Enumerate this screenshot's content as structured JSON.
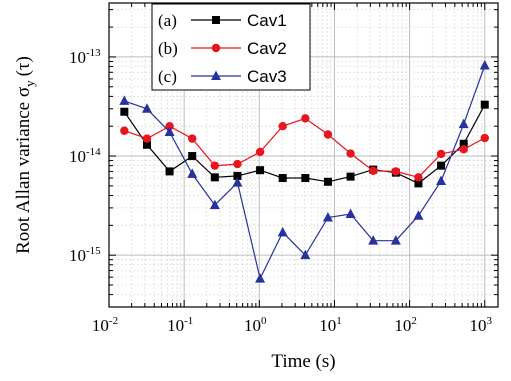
{
  "chart_data": {
    "type": "line",
    "xlabel": "Time (s)",
    "ylabel": "Root Allan variance σ",
    "ylabel_sub": "y",
    "ylabel_tail": "(τ)",
    "x_scale": "log",
    "y_scale": "log",
    "xlim": [
      0.01,
      1500
    ],
    "ylim": [
      3e-16,
      3.5e-13
    ],
    "grid": true,
    "legend_position": "top-left",
    "x_ticks": [
      {
        "base": "10",
        "exp": "-2"
      },
      {
        "base": "10",
        "exp": "-1"
      },
      {
        "base": "10",
        "exp": "0"
      },
      {
        "base": "10",
        "exp": "1"
      },
      {
        "base": "10",
        "exp": "2"
      },
      {
        "base": "10",
        "exp": "3"
      }
    ],
    "y_ticks": [
      {
        "base": "10",
        "exp": "-15"
      },
      {
        "base": "10",
        "exp": "-14"
      },
      {
        "base": "10",
        "exp": "-13"
      }
    ],
    "x": [
      0.016,
      0.032,
      0.064,
      0.128,
      0.256,
      0.512,
      1.024,
      2.048,
      4.096,
      8.192,
      16.384,
      32.768,
      65.536,
      131.072,
      262.144,
      524.288,
      1000
    ],
    "series": [
      {
        "tag": "(a)",
        "name": "Cav1",
        "color": "#000000",
        "marker": "square",
        "values": [
          2.8e-14,
          1.3e-14,
          7e-15,
          1e-14,
          6.1e-15,
          6.3e-15,
          7.2e-15,
          6e-15,
          6e-15,
          5.5e-15,
          6.2e-15,
          7.3e-15,
          6.8e-15,
          5.3e-15,
          8e-15,
          1.33e-14,
          3.3e-14
        ]
      },
      {
        "tag": "(b)",
        "name": "Cav2",
        "color": "#e8141e",
        "marker": "circle",
        "values": [
          1.8e-14,
          1.5e-14,
          2e-14,
          1.5e-14,
          8e-15,
          8.3e-15,
          1.1e-14,
          2e-14,
          2.4e-14,
          1.65e-14,
          1.06e-14,
          7.1e-15,
          7e-15,
          6.1e-15,
          1.05e-14,
          1.17e-14,
          1.52e-14
        ]
      },
      {
        "tag": "(c)",
        "name": "Cav3",
        "color": "#27329a",
        "marker": "triangle",
        "values": [
          3.6e-14,
          3e-14,
          1.75e-14,
          6.6e-15,
          3.2e-15,
          5.4e-15,
          5.8e-16,
          1.7e-15,
          1e-15,
          2.4e-15,
          2.6e-15,
          1.4e-15,
          1.4e-15,
          2.5e-15,
          5.6e-15,
          2.1e-14,
          8.2e-14
        ]
      }
    ]
  }
}
